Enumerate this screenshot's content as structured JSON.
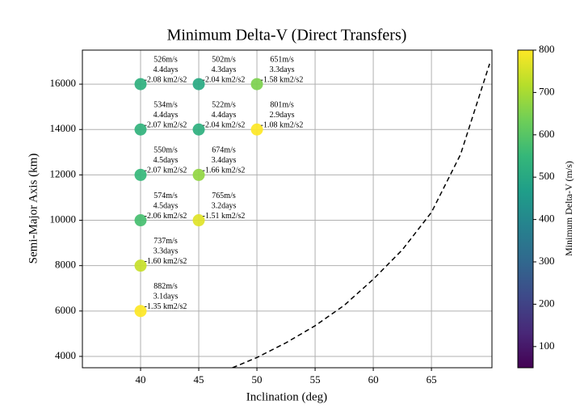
{
  "chart_data": {
    "type": "scatter",
    "title": "Minimum Delta-V (Direct Transfers)",
    "x_label": "Inclination (deg)",
    "y_label": "Semi-Major Axis (km)",
    "x": [
      40,
      45,
      50,
      40,
      45,
      50,
      40,
      45,
      40,
      45,
      40,
      40
    ],
    "y": [
      16000,
      16000,
      16000,
      14000,
      14000,
      14000,
      12000,
      12000,
      10000,
      10000,
      8000,
      6000
    ],
    "c": [
      526,
      502,
      651,
      534,
      522,
      801,
      550,
      674,
      574,
      765,
      737,
      882
    ],
    "labels": [
      [
        "526m/s",
        "4.4days",
        "-2.08 km2/s2"
      ],
      [
        "502m/s",
        "4.3days",
        "-2.04 km2/s2"
      ],
      [
        "651m/s",
        "3.3days",
        "-1.58 km2/s2"
      ],
      [
        "534m/s",
        "4.4days",
        "-2.07 km2/s2"
      ],
      [
        "522m/s",
        "4.4days",
        "-2.04 km2/s2"
      ],
      [
        "801m/s",
        "2.9days",
        "-1.08 km2/s2"
      ],
      [
        "550m/s",
        "4.5days",
        "-2.07 km2/s2"
      ],
      [
        "674m/s",
        "3.4days",
        "-1.66 km2/s2"
      ],
      [
        "574m/s",
        "4.5days",
        "-2.06 km2/s2"
      ],
      [
        "765m/s",
        "3.2days",
        "-1.51 km2/s2"
      ],
      [
        "737m/s",
        "3.3days",
        "-1.60 km2/s2"
      ],
      [
        "882m/s",
        "3.1days",
        "-1.35 km2/s2"
      ]
    ],
    "lines": [
      {
        "color": "#000000",
        "dashed": true,
        "x": [
          47.9,
          50,
          52.5,
          55,
          57.5,
          60,
          62.5,
          65,
          67.5,
          70
        ],
        "y": [
          3500,
          3950,
          4600,
          5350,
          6250,
          7400,
          8700,
          10350,
          12900,
          16900
        ]
      }
    ],
    "xlim": [
      35,
      70.2
    ],
    "xticks": [
      40,
      45,
      50,
      55,
      60,
      65
    ],
    "ylim": [
      3500,
      17500
    ],
    "yticks": [
      4000,
      6000,
      8000,
      10000,
      12000,
      14000,
      16000
    ],
    "grid": true,
    "colormap": "viridis",
    "colorbar": {
      "label": "Minimum Delta-V (m/s)",
      "clim": [
        50,
        800
      ],
      "ticks": [
        100,
        200,
        300,
        400,
        500,
        600,
        700,
        800
      ]
    }
  }
}
